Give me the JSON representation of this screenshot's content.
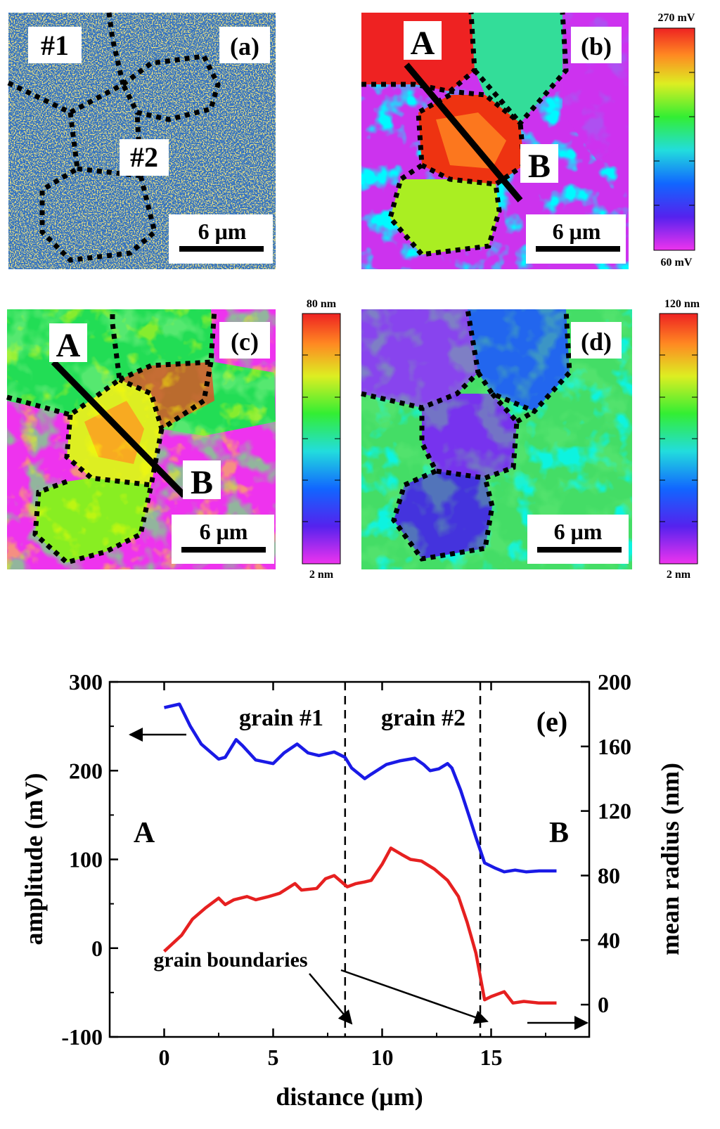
{
  "panels": {
    "a": {
      "tag": "(a)",
      "grain_labels": [
        "#1",
        "#2"
      ],
      "scalebar": "6 μm"
    },
    "b": {
      "tag": "(b)",
      "line_labels": [
        "A",
        "B"
      ],
      "scalebar": "6 μm",
      "colorbar": {
        "max": "270 mV",
        "min": "60 mV"
      }
    },
    "c": {
      "tag": "(c)",
      "line_labels": [
        "A",
        "B"
      ],
      "scalebar": "6 μm",
      "colorbar": {
        "max": "80 nm",
        "min": "2 nm"
      }
    },
    "d": {
      "tag": "(d)",
      "scalebar": "6 μm",
      "colorbar": {
        "max": "120 nm",
        "min": "2 nm"
      }
    }
  },
  "chart_data": {
    "type": "line",
    "panel_tag": "(e)",
    "xlabel": "distance (μm)",
    "ylabel_left": "amplitude (mV)",
    "ylabel_right": "mean radius (nm)",
    "xlim": [
      -2.5,
      19.5
    ],
    "ylim_left": [
      -100,
      300
    ],
    "ylim_right": [
      -20,
      200
    ],
    "x_ticks": [
      "0",
      "5",
      "10",
      "15"
    ],
    "x_tick_values": [
      0,
      5,
      10,
      15
    ],
    "y_left_ticks": [
      "-100",
      "0",
      "100",
      "200",
      "300"
    ],
    "y_left_tick_values": [
      -100,
      0,
      100,
      200,
      300
    ],
    "y_right_ticks": [
      "0",
      "40",
      "80",
      "120",
      "160",
      "200"
    ],
    "y_right_tick_values": [
      0,
      40,
      80,
      120,
      160,
      200
    ],
    "annotations": {
      "grain1": "grain #1",
      "grain2": "grain #2",
      "A": "A",
      "B": "B",
      "boundaries": "grain boundaries"
    },
    "boundary_x": [
      8.3,
      14.5
    ],
    "series": [
      {
        "name": "amplitude",
        "axis": "left",
        "color": "#1a1ae6",
        "points": [
          [
            0,
            271
          ],
          [
            0.7,
            275
          ],
          [
            1.2,
            250
          ],
          [
            1.7,
            230
          ],
          [
            2.5,
            213
          ],
          [
            2.8,
            215
          ],
          [
            3.3,
            235
          ],
          [
            3.6,
            228
          ],
          [
            4.2,
            212
          ],
          [
            5,
            208
          ],
          [
            5.5,
            220
          ],
          [
            6.1,
            230
          ],
          [
            6.6,
            220
          ],
          [
            7.1,
            217
          ],
          [
            7.8,
            221
          ],
          [
            8.3,
            215
          ],
          [
            8.6,
            203
          ],
          [
            9.2,
            191
          ],
          [
            9.5,
            196
          ],
          [
            10.2,
            207
          ],
          [
            10.8,
            211
          ],
          [
            11.5,
            214
          ],
          [
            11.9,
            207
          ],
          [
            12.2,
            200
          ],
          [
            12.6,
            202
          ],
          [
            13.0,
            208
          ],
          [
            13.2,
            203
          ],
          [
            13.6,
            178
          ],
          [
            14.0,
            148
          ],
          [
            14.3,
            125
          ],
          [
            14.7,
            96
          ],
          [
            15.2,
            90
          ],
          [
            15.6,
            86
          ],
          [
            16.1,
            88
          ],
          [
            16.6,
            86
          ],
          [
            17.2,
            87
          ],
          [
            18.0,
            87
          ]
        ]
      },
      {
        "name": "mean radius",
        "axis": "right",
        "color": "#e62020",
        "points": [
          [
            0,
            33
          ],
          [
            0.8,
            43
          ],
          [
            1.3,
            53
          ],
          [
            1.9,
            60
          ],
          [
            2.5,
            66
          ],
          [
            2.8,
            62
          ],
          [
            3.2,
            65
          ],
          [
            3.8,
            67
          ],
          [
            4.2,
            65
          ],
          [
            4.8,
            67
          ],
          [
            5.3,
            69
          ],
          [
            6.0,
            75
          ],
          [
            6.3,
            71
          ],
          [
            7.0,
            72
          ],
          [
            7.4,
            78
          ],
          [
            7.8,
            80
          ],
          [
            8.4,
            73
          ],
          [
            8.8,
            75
          ],
          [
            9.2,
            76
          ],
          [
            9.5,
            77
          ],
          [
            10.0,
            87
          ],
          [
            10.4,
            97
          ],
          [
            10.9,
            93
          ],
          [
            11.3,
            90
          ],
          [
            11.8,
            89
          ],
          [
            12.4,
            84
          ],
          [
            13.0,
            77
          ],
          [
            13.5,
            67
          ],
          [
            13.9,
            51
          ],
          [
            14.3,
            32
          ],
          [
            14.7,
            3
          ],
          [
            15.0,
            5
          ],
          [
            15.6,
            8
          ],
          [
            16.0,
            1
          ],
          [
            16.5,
            2
          ],
          [
            17.2,
            1
          ],
          [
            18.0,
            1
          ]
        ]
      }
    ]
  }
}
